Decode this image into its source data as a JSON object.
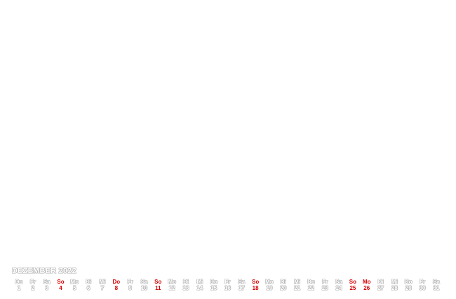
{
  "calendar": {
    "month_label": "DEZEMBER 2022",
    "highlight_color": "#d40000",
    "days": [
      {
        "name": "Do",
        "num": "1",
        "highlight": false
      },
      {
        "name": "Fr",
        "num": "2",
        "highlight": false
      },
      {
        "name": "Sa",
        "num": "3",
        "highlight": false
      },
      {
        "name": "So",
        "num": "4",
        "highlight": true
      },
      {
        "name": "Mo",
        "num": "5",
        "highlight": false
      },
      {
        "name": "Di",
        "num": "6",
        "highlight": false
      },
      {
        "name": "Mi",
        "num": "7",
        "highlight": false
      },
      {
        "name": "Do",
        "num": "8",
        "highlight": true
      },
      {
        "name": "Fr",
        "num": "9",
        "highlight": false
      },
      {
        "name": "Sa",
        "num": "10",
        "highlight": false
      },
      {
        "name": "So",
        "num": "11",
        "highlight": true
      },
      {
        "name": "Mo",
        "num": "12",
        "highlight": false
      },
      {
        "name": "Di",
        "num": "13",
        "highlight": false
      },
      {
        "name": "Mi",
        "num": "14",
        "highlight": false
      },
      {
        "name": "Do",
        "num": "15",
        "highlight": false
      },
      {
        "name": "Fr",
        "num": "16",
        "highlight": false
      },
      {
        "name": "Sa",
        "num": "17",
        "highlight": false
      },
      {
        "name": "So",
        "num": "18",
        "highlight": true
      },
      {
        "name": "Mo",
        "num": "19",
        "highlight": false
      },
      {
        "name": "Di",
        "num": "20",
        "highlight": false
      },
      {
        "name": "Mi",
        "num": "21",
        "highlight": false
      },
      {
        "name": "Do",
        "num": "22",
        "highlight": false
      },
      {
        "name": "Fr",
        "num": "23",
        "highlight": false
      },
      {
        "name": "Sa",
        "num": "24",
        "highlight": false
      },
      {
        "name": "So",
        "num": "25",
        "highlight": true
      },
      {
        "name": "Mo",
        "num": "26",
        "highlight": true
      },
      {
        "name": "Di",
        "num": "27",
        "highlight": false
      },
      {
        "name": "Mi",
        "num": "28",
        "highlight": false
      },
      {
        "name": "Do",
        "num": "29",
        "highlight": false
      },
      {
        "name": "Fr",
        "num": "30",
        "highlight": false
      },
      {
        "name": "Sa",
        "num": "31",
        "highlight": false
      }
    ]
  }
}
